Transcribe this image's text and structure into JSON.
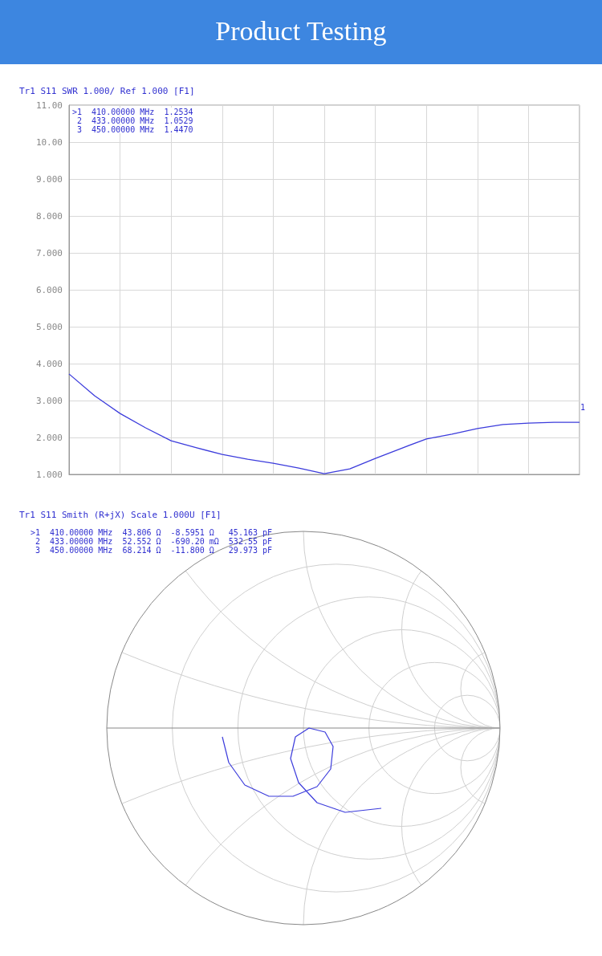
{
  "chart_data": [
    {
      "type": "line",
      "title": "Product Testing",
      "subtitle": "Tr1 S11 SWR 1.000/ Ref 1.000 [F1]",
      "categories": [
        null,
        null,
        null,
        null,
        null,
        null,
        null,
        null,
        null,
        null,
        null,
        null,
        null,
        null,
        null,
        null,
        null,
        null,
        null,
        null,
        null
      ],
      "series": [
        {
          "color": "#3c3cdc",
          "values": [
            3.72,
            3.13,
            2.65,
            2.26,
            1.91,
            1.72,
            1.54,
            1.41,
            1.3,
            1.17,
            1.02,
            1.15,
            1.43,
            1.7,
            1.96,
            2.09,
            2.24,
            2.35,
            2.39,
            2.41,
            2.41
          ]
        }
      ],
      "ylim": [
        1,
        11
      ],
      "yticks": [
        {
          "value": 1,
          "label": "1.000"
        },
        {
          "value": 2,
          "label": "2.000"
        },
        {
          "value": 3,
          "label": "3.000"
        },
        {
          "value": 4,
          "label": "4.000"
        },
        {
          "value": 5,
          "label": "5.000"
        },
        {
          "value": 6,
          "label": "6.000"
        },
        {
          "value": 7,
          "label": "7.000"
        },
        {
          "value": 8,
          "label": "8.000"
        },
        {
          "value": 9,
          "label": "9.000"
        },
        {
          "value": 10,
          "label": "10.00"
        },
        {
          "value": 11,
          "label": "11.00"
        }
      ],
      "grid": true,
      "marker": "none",
      "line_style": "solid",
      "tick_labels": "y",
      "annotations": [
        ">1  410.00000 MHz  1.2534",
        " 2  433.00000 MHz  1.0529",
        " 3  450.00000 MHz  1.4470",
        "1"
      ]
    },
    {
      "type": "other",
      "title": "Tr1 S11 Smith (R+jX) Scale 1.000U [F1]",
      "annotations": [
        ">1  410.00000 MHz  43.806 Ω  -8.5951 Ω   45.163 pF",
        " 2  433.00000 MHz  52.552 Ω  -690.20 mΩ  532.55 pF",
        " 3  450.00000 MHz  68.214 Ω  -11.800 Ω   29.973 pF"
      ]
    }
  ]
}
